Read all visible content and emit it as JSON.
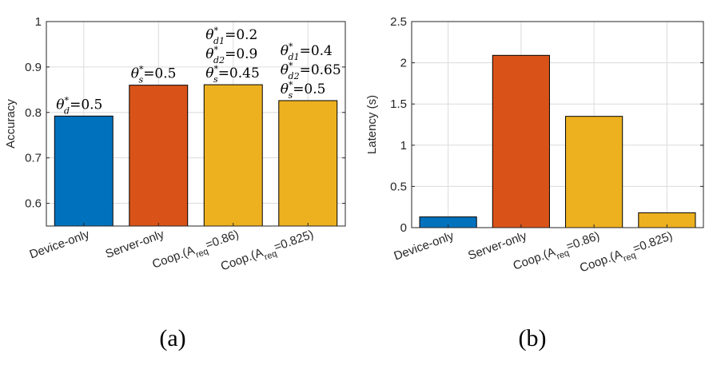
{
  "chart_data": [
    {
      "type": "bar",
      "panel_label": "(a)",
      "ylabel": "Accuracy",
      "ylim": [
        0.55,
        1
      ],
      "yticks": [
        0.6,
        0.7,
        0.8,
        0.9,
        1
      ],
      "ytick_labels": [
        "0.6",
        "0.7",
        "0.8",
        "0.9",
        "1"
      ],
      "grid": true,
      "categories": [
        {
          "label": "Device-only"
        },
        {
          "label": "Server-only"
        },
        {
          "label": "Coop.(A",
          "sub": "req",
          "tail": "=0.86)"
        },
        {
          "label": "Coop.(A",
          "sub": "req",
          "tail": "=0.825)"
        }
      ],
      "values": [
        0.792,
        0.86,
        0.861,
        0.826
      ],
      "colors": [
        "#0072BD",
        "#D95319",
        "#EDB120",
        "#EDB120"
      ],
      "annotations": [
        [
          {
            "sym": "θ",
            "sup": "*",
            "sub": "d",
            "val": "=0.5"
          }
        ],
        [
          {
            "sym": "θ",
            "sup": "*",
            "sub": "s",
            "val": "=0.5"
          }
        ],
        [
          {
            "sym": "θ",
            "sup": "*",
            "sub": "d1",
            "val": "=0.2"
          },
          {
            "sym": "θ",
            "sup": "*",
            "sub": "d2",
            "val": "=0.9"
          },
          {
            "sym": "θ",
            "sup": "*",
            "sub": "s",
            "val": "=0.45"
          }
        ],
        [
          {
            "sym": "θ",
            "sup": "*",
            "sub": "d1",
            "val": "=0.4"
          },
          {
            "sym": "θ",
            "sup": "*",
            "sub": "d2",
            "val": "=0.65"
          },
          {
            "sym": "θ",
            "sup": "*",
            "sub": "s",
            "val": "=0.5"
          }
        ]
      ]
    },
    {
      "type": "bar",
      "panel_label": "(b)",
      "ylabel": "Latency (s)",
      "ylim": [
        0,
        2.5
      ],
      "yticks": [
        0,
        0.5,
        1,
        1.5,
        2,
        2.5
      ],
      "ytick_labels": [
        "0",
        "0.5",
        "1",
        "1.5",
        "2",
        "2.5"
      ],
      "grid": true,
      "categories": [
        {
          "label": "Device-only"
        },
        {
          "label": "Server-only"
        },
        {
          "label": "Coop.(A",
          "sub": "req",
          "tail": "=0.86)"
        },
        {
          "label": "Coop.(A",
          "sub": "req",
          "tail": "=0.825)"
        }
      ],
      "values": [
        0.13,
        2.09,
        1.35,
        0.18
      ],
      "colors": [
        "#0072BD",
        "#D95319",
        "#EDB120",
        "#EDB120"
      ],
      "annotations": []
    }
  ]
}
